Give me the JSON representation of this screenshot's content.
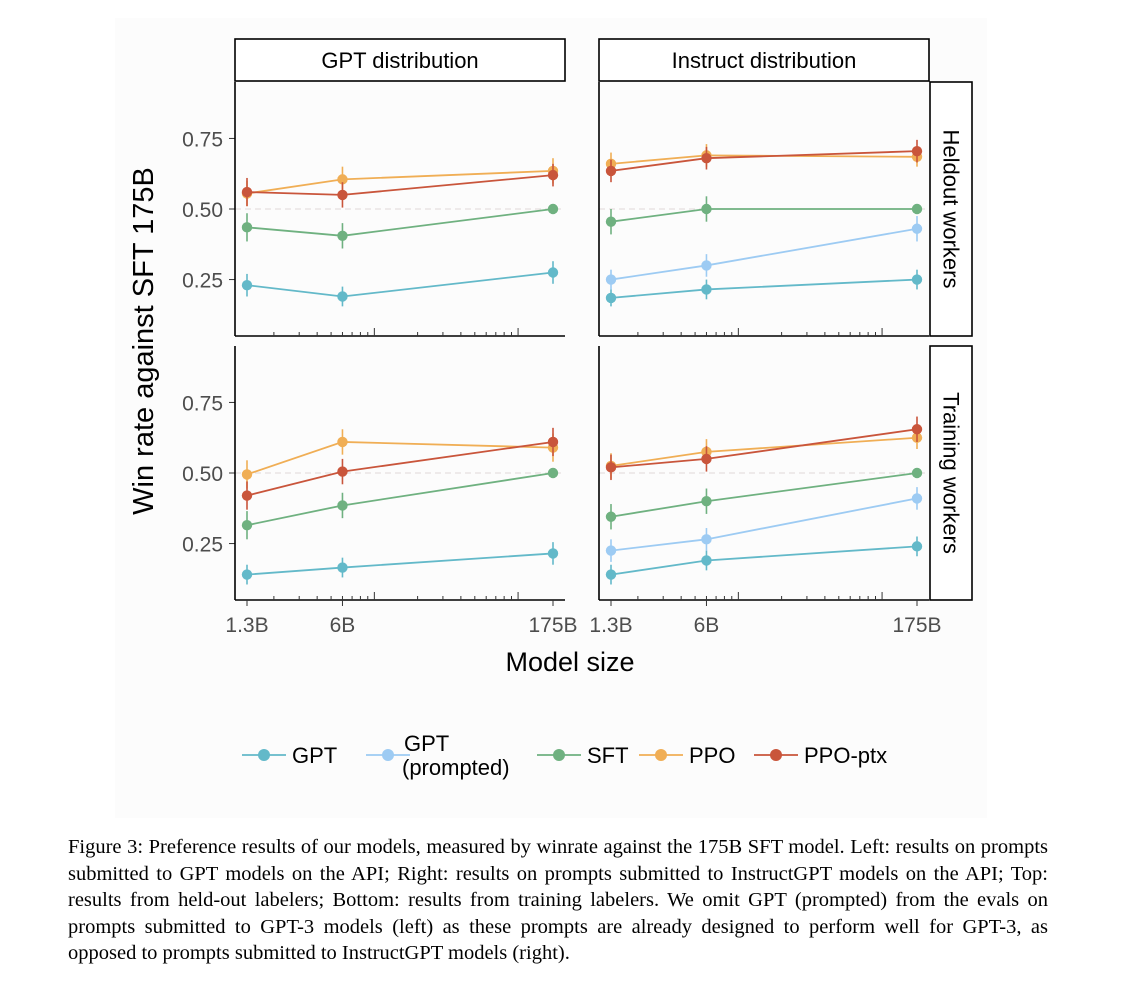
{
  "chart_data": {
    "type": "line",
    "ylabel": "Win rate against SFT 175B",
    "xlabel": "Model size",
    "x_categories": [
      "1.3B",
      "6B",
      "175B"
    ],
    "x_params_billions": [
      1.3,
      6,
      175
    ],
    "x_scale": "log",
    "yticks": [
      "0.25",
      "0.50",
      "0.75"
    ],
    "ylim": [
      0.05,
      0.95
    ],
    "reference_line": 0.5,
    "column_facets": [
      "GPT distribution",
      "Instruct distribution"
    ],
    "row_facets": [
      "Heldout workers",
      "Training workers"
    ],
    "series_colors": {
      "GPT": "#63b9c9",
      "GPT (prompted)": "#9dcbf3",
      "SFT": "#6fb180",
      "PPO": "#f0ae55",
      "PPO-ptx": "#c9553b"
    },
    "panels": [
      {
        "column": "GPT distribution",
        "row": "Heldout workers",
        "series": [
          {
            "name": "GPT",
            "values": [
              0.23,
              0.19,
              0.275
            ],
            "errors": [
              0.04,
              0.035,
              0.04
            ]
          },
          {
            "name": "SFT",
            "values": [
              0.435,
              0.405,
              0.5
            ],
            "errors": [
              0.05,
              0.045,
              0.01
            ]
          },
          {
            "name": "PPO",
            "values": [
              0.555,
              0.605,
              0.635
            ],
            "errors": [
              0.045,
              0.045,
              0.045
            ]
          },
          {
            "name": "PPO-ptx",
            "values": [
              0.56,
              0.55,
              0.62
            ],
            "errors": [
              0.05,
              0.045,
              0.04
            ]
          }
        ]
      },
      {
        "column": "Instruct distribution",
        "row": "Heldout workers",
        "series": [
          {
            "name": "GPT",
            "values": [
              0.185,
              0.215,
              0.25
            ],
            "errors": [
              0.03,
              0.035,
              0.035
            ]
          },
          {
            "name": "GPT (prompted)",
            "values": [
              0.25,
              0.3,
              0.43
            ],
            "errors": [
              0.035,
              0.04,
              0.045
            ]
          },
          {
            "name": "SFT",
            "values": [
              0.455,
              0.5,
              0.5
            ],
            "errors": [
              0.045,
              0.045,
              0.01
            ]
          },
          {
            "name": "PPO",
            "values": [
              0.66,
              0.69,
              0.685
            ],
            "errors": [
              0.04,
              0.04,
              0.035
            ]
          },
          {
            "name": "PPO-ptx",
            "values": [
              0.635,
              0.68,
              0.705
            ],
            "errors": [
              0.04,
              0.04,
              0.04
            ]
          }
        ]
      },
      {
        "column": "GPT distribution",
        "row": "Training workers",
        "series": [
          {
            "name": "GPT",
            "values": [
              0.14,
              0.165,
              0.215
            ],
            "errors": [
              0.035,
              0.035,
              0.04
            ]
          },
          {
            "name": "SFT",
            "values": [
              0.315,
              0.385,
              0.5
            ],
            "errors": [
              0.05,
              0.045,
              0.01
            ]
          },
          {
            "name": "PPO",
            "values": [
              0.495,
              0.61,
              0.59
            ],
            "errors": [
              0.05,
              0.045,
              0.05
            ]
          },
          {
            "name": "PPO-ptx",
            "values": [
              0.42,
              0.505,
              0.61
            ],
            "errors": [
              0.05,
              0.045,
              0.05
            ]
          }
        ]
      },
      {
        "column": "Instruct distribution",
        "row": "Training workers",
        "series": [
          {
            "name": "GPT",
            "values": [
              0.14,
              0.19,
              0.24
            ],
            "errors": [
              0.035,
              0.035,
              0.035
            ]
          },
          {
            "name": "GPT (prompted)",
            "values": [
              0.225,
              0.265,
              0.41
            ],
            "errors": [
              0.04,
              0.04,
              0.04
            ]
          },
          {
            "name": "SFT",
            "values": [
              0.345,
              0.4,
              0.5
            ],
            "errors": [
              0.045,
              0.045,
              0.01
            ]
          },
          {
            "name": "PPO",
            "values": [
              0.525,
              0.575,
              0.625
            ],
            "errors": [
              0.045,
              0.045,
              0.04
            ]
          },
          {
            "name": "PPO-ptx",
            "values": [
              0.52,
              0.55,
              0.655
            ],
            "errors": [
              0.045,
              0.045,
              0.045
            ]
          }
        ]
      }
    ],
    "legend": {
      "position": "bottom",
      "items": [
        {
          "series": "GPT",
          "lines": [
            "GPT"
          ]
        },
        {
          "series": "GPT (prompted)",
          "lines": [
            "GPT",
            "(prompted)"
          ]
        },
        {
          "series": "SFT",
          "lines": [
            "SFT"
          ]
        },
        {
          "series": "PPO",
          "lines": [
            "PPO"
          ]
        },
        {
          "series": "PPO-ptx",
          "lines": [
            "PPO-ptx"
          ]
        }
      ]
    }
  },
  "caption": "Figure 3: Preference results of our models, measured by winrate against the 175B SFT model. Left: results on prompts submitted to GPT models on the API; Right: results on prompts submitted to InstructGPT models on the API; Top: results from held-out labelers; Bottom: results from training labelers. We omit GPT (prompted) from the evals on prompts submitted to GPT-3 models (left) as these prompts are already designed to perform well for GPT-3, as opposed to prompts submitted to InstructGPT models (right)."
}
